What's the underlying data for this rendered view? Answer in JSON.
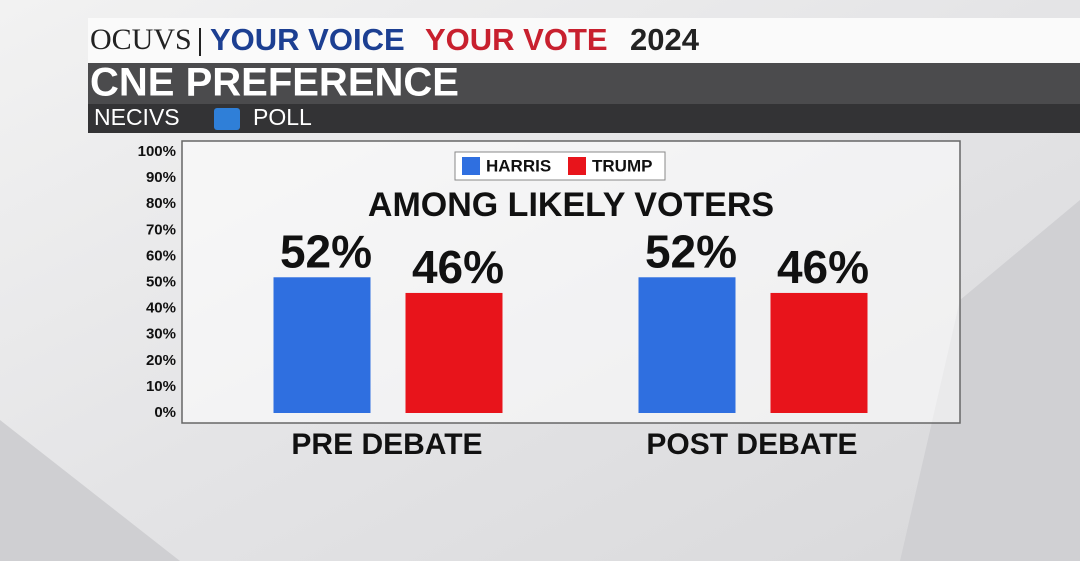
{
  "header": {
    "logo": "OCUVS",
    "voice": "YOUR VOICE",
    "vote": "YOUR VOTE",
    "year": "2024",
    "headline": "CNE PREFERENCE",
    "source": "NECIVS",
    "poll": "POLL"
  },
  "chart_data": {
    "type": "bar",
    "subtitle": "AMONG LIKELY VOTERS",
    "categories": [
      "PRE DEBATE",
      "POST DEBATE"
    ],
    "series": [
      {
        "name": "HARRIS",
        "color": "#2f6fe0",
        "values": [
          52,
          52
        ],
        "value_labels": [
          "52%",
          "52%"
        ]
      },
      {
        "name": "TRUMP",
        "color": "#e8141b",
        "values": [
          46,
          46
        ],
        "value_labels": [
          "46%",
          "46%"
        ]
      }
    ],
    "ylim": [
      0,
      100
    ],
    "yticks": [
      {
        "value": 0,
        "label": "0%"
      },
      {
        "value": 10,
        "label": "10%"
      },
      {
        "value": 20,
        "label": "20%"
      },
      {
        "value": 30,
        "label": "30%"
      },
      {
        "value": 40,
        "label": "40%"
      },
      {
        "value": 50,
        "label": "50%"
      },
      {
        "value": 60,
        "label": "60%"
      },
      {
        "value": 70,
        "label": "70%"
      },
      {
        "value": 80,
        "label": "80%"
      },
      {
        "value": 90,
        "label": "90%"
      },
      {
        "value": 100,
        "label": "100%"
      }
    ],
    "grid": false,
    "legend": "top"
  }
}
